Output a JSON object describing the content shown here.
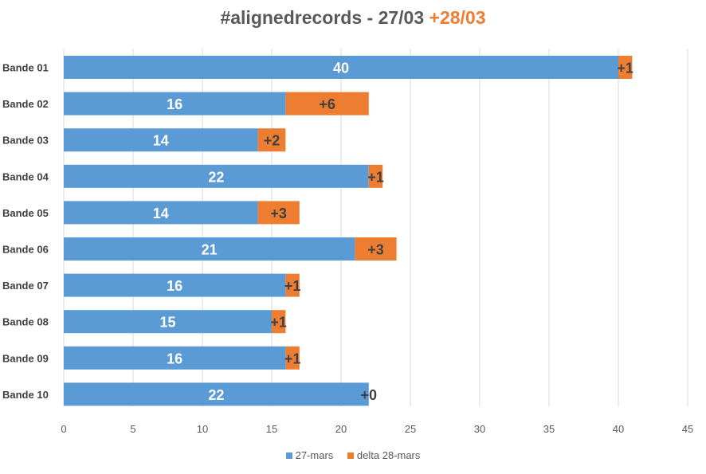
{
  "title": {
    "main": "#alignedrecords - 27/03",
    "accent": "+28/03"
  },
  "colors": {
    "series_base": "#5B9BD5",
    "series_delta": "#ED7D31",
    "gridline": "#D9D9D9",
    "axis_text": "#595959",
    "category_text": "#404040",
    "base_label": "#FFFFFF",
    "delta_label": "#404040"
  },
  "chart_data": {
    "type": "bar",
    "orientation": "horizontal",
    "stacked": true,
    "categories": [
      "Bande 01",
      "Bande 02",
      "Bande 03",
      "Bande 04",
      "Bande 05",
      "Bande 06",
      "Bande 07",
      "Bande 08",
      "Bande 09",
      "Bande 10"
    ],
    "series": [
      {
        "name": "27-mars",
        "values": [
          40,
          16,
          14,
          22,
          14,
          21,
          16,
          15,
          16,
          22
        ]
      },
      {
        "name": "delta 28-mars",
        "values": [
          1,
          6,
          2,
          1,
          3,
          3,
          1,
          1,
          1,
          0
        ]
      }
    ],
    "base_labels": [
      "40",
      "16",
      "14",
      "22",
      "14",
      "21",
      "16",
      "15",
      "16",
      "22"
    ],
    "delta_labels": [
      "+1",
      "+6",
      "+2",
      "+1",
      "+3",
      "+3",
      "+1",
      "+1",
      "+1",
      "+0"
    ],
    "xlim": [
      0,
      45
    ],
    "xticks": [
      "0",
      "5",
      "10",
      "15",
      "20",
      "25",
      "30",
      "35",
      "40",
      "45"
    ],
    "grid": true,
    "legend_position": "bottom"
  }
}
